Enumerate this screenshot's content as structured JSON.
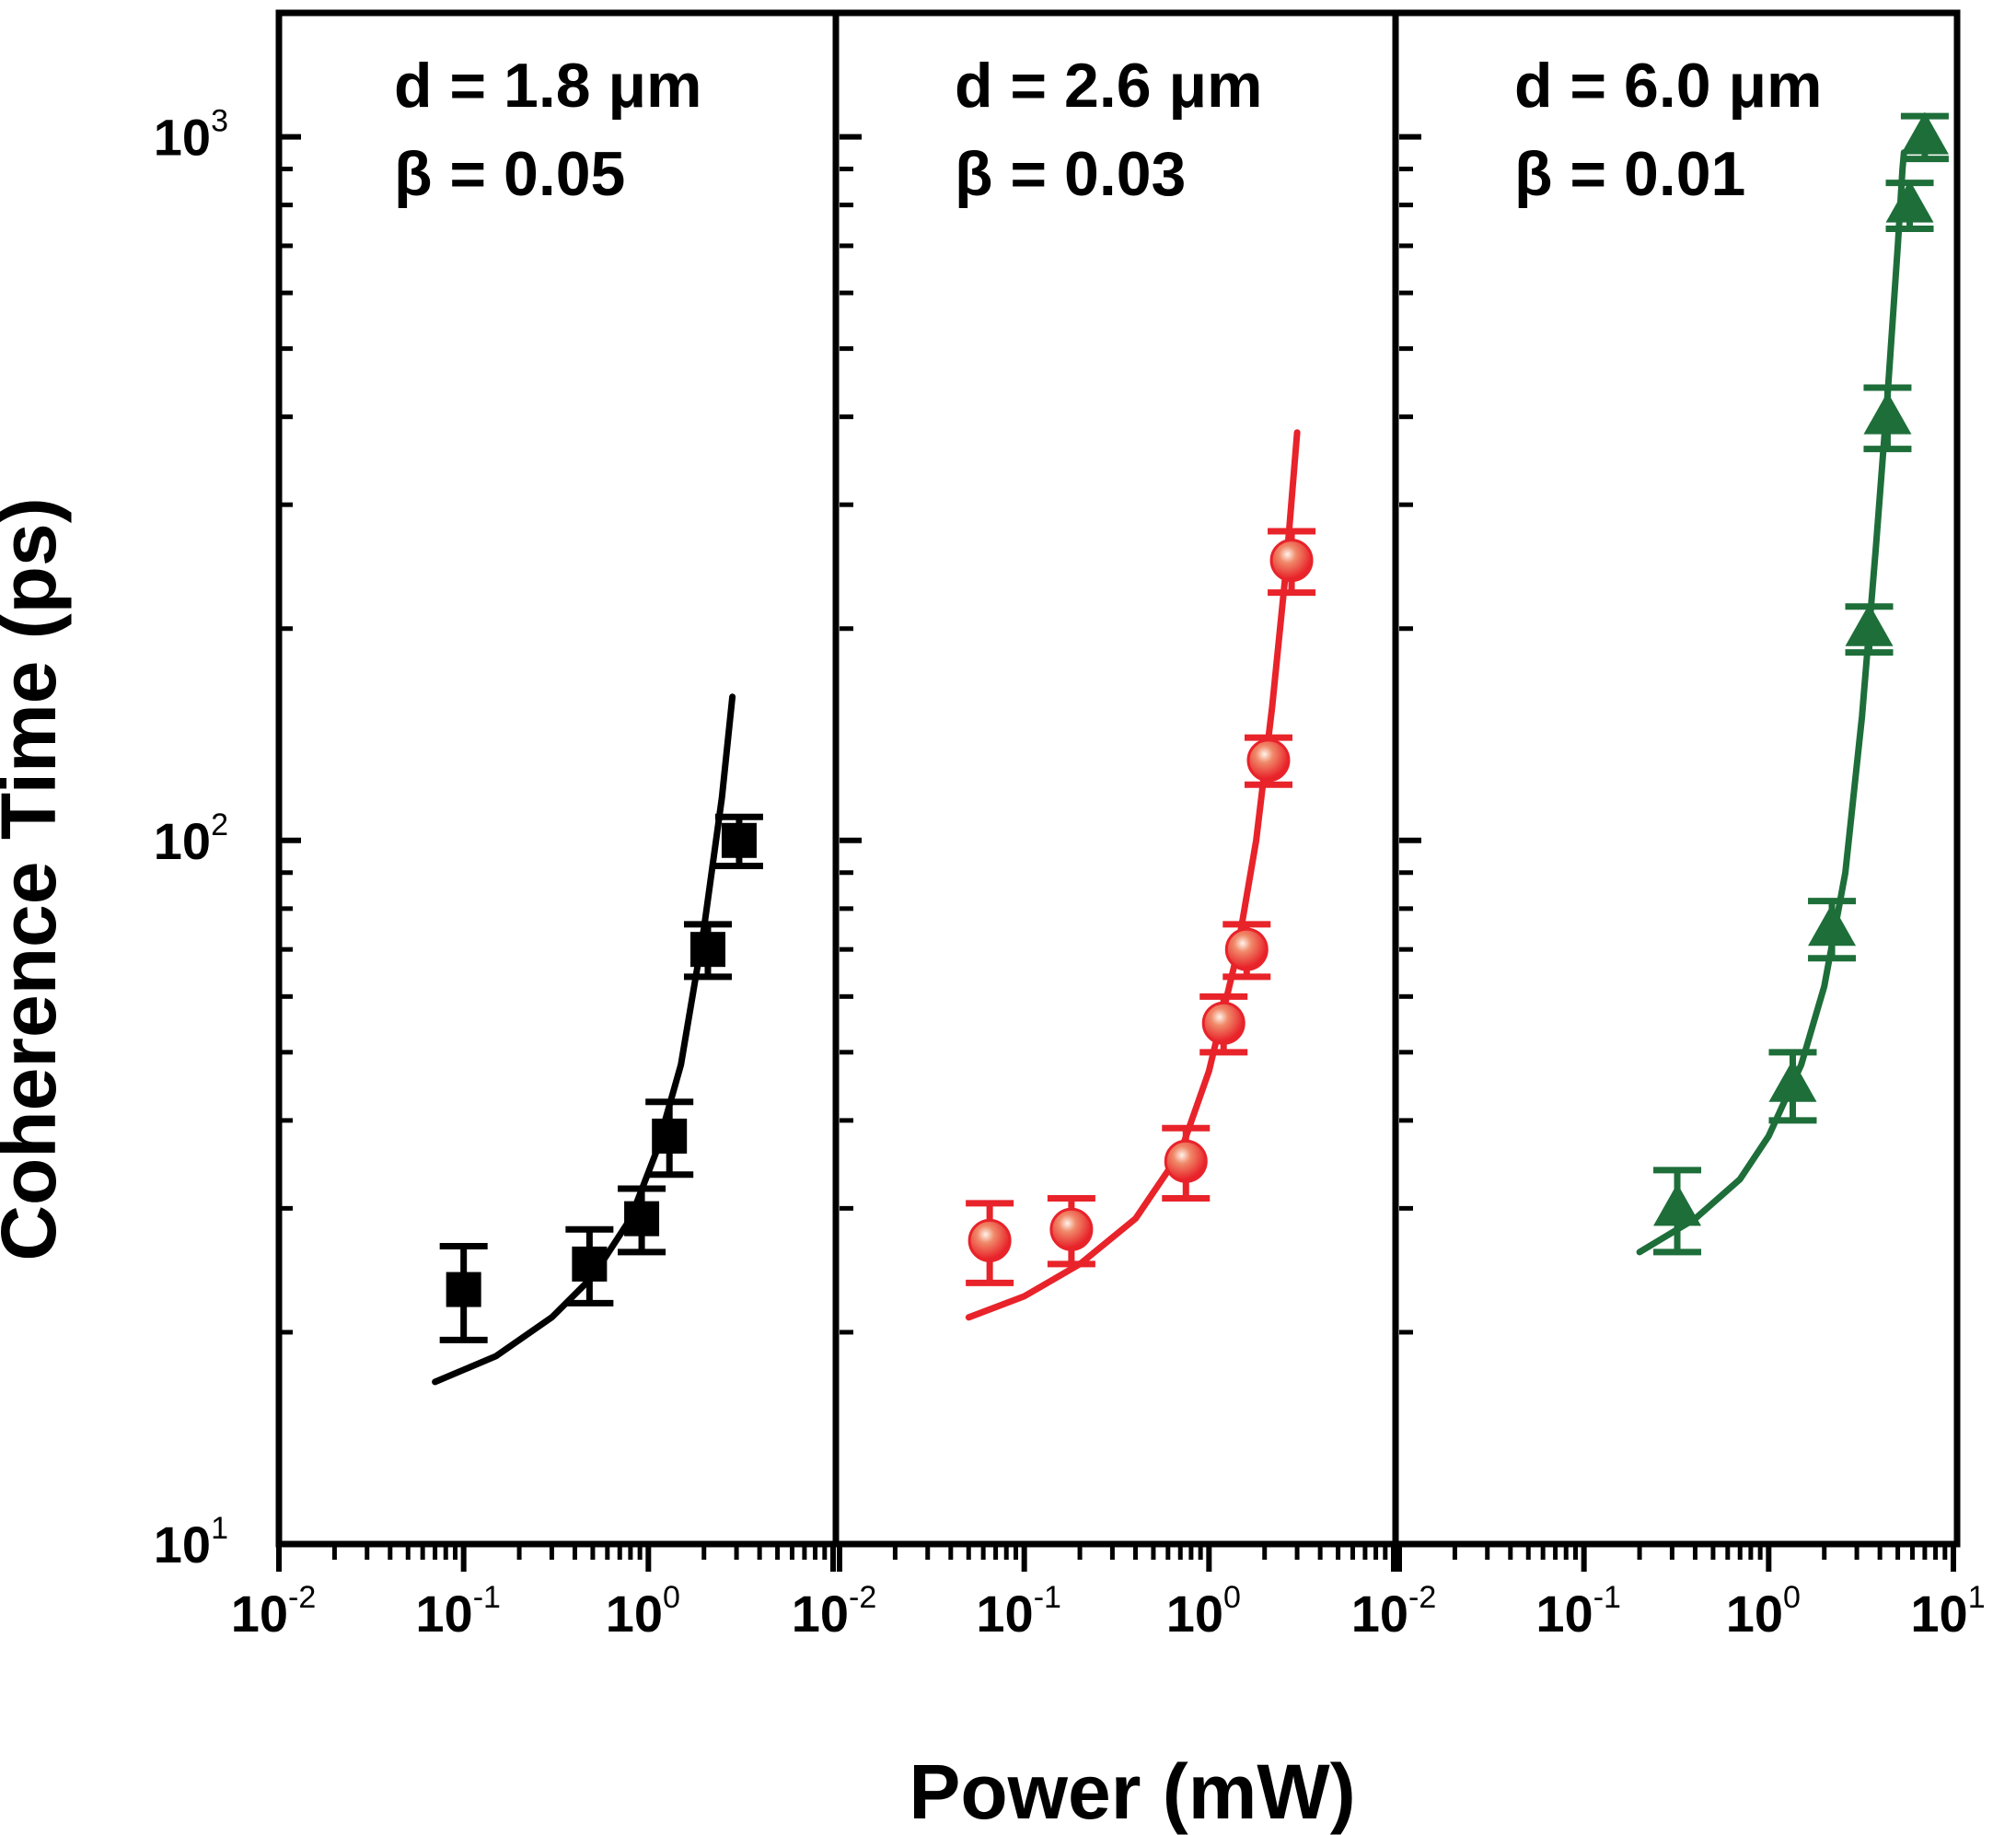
{
  "figure": {
    "ylabel": "Coherence Time (ps)",
    "xlabel": "Power (mW)"
  },
  "chart_data": [
    {
      "type": "scatter",
      "title": "d = 1.8 μm",
      "subtitle": "β = 0.05",
      "xlabel": "Power (mW)",
      "ylabel": "Coherence Time (ps)",
      "xscale": "log",
      "yscale": "log",
      "xlim": [
        0.01,
        10
      ],
      "ylim": [
        10,
        1500
      ],
      "x_tick_labels": [
        {
          "base": "10",
          "exp": "-2"
        },
        {
          "base": "10",
          "exp": "-1"
        },
        {
          "base": "10",
          "exp": "0"
        }
      ],
      "y_tick_labels": [
        {
          "base": "10",
          "exp": "1"
        },
        {
          "base": "10",
          "exp": "2"
        },
        {
          "base": "10",
          "exp": "3"
        }
      ],
      "marker": "square",
      "color": "#000000",
      "grid": false,
      "points": [
        {
          "x": 0.1,
          "y": 23,
          "err": 3.5
        },
        {
          "x": 0.48,
          "y": 25,
          "err": 3
        },
        {
          "x": 0.92,
          "y": 29,
          "err": 3
        },
        {
          "x": 1.3,
          "y": 38,
          "err": 4.5
        },
        {
          "x": 2.1,
          "y": 70,
          "err": 6
        },
        {
          "x": 3.1,
          "y": 100,
          "err": 8
        }
      ],
      "fit": {
        "x": [
          0.07,
          0.15,
          0.3,
          0.5,
          0.8,
          1.1,
          1.5,
          2.0,
          2.5,
          2.85
        ],
        "y": [
          17,
          18.5,
          21,
          24,
          29,
          36,
          48,
          75,
          115,
          160
        ]
      }
    },
    {
      "type": "scatter",
      "title": "d = 2.6 μm",
      "subtitle": "β = 0.03",
      "xlabel": "Power (mW)",
      "ylabel": "Coherence Time (ps)",
      "xscale": "log",
      "yscale": "log",
      "xlim": [
        0.01,
        10
      ],
      "ylim": [
        10,
        1500
      ],
      "x_tick_labels": [
        {
          "base": "10",
          "exp": "-2"
        },
        {
          "base": "10",
          "exp": "-1"
        },
        {
          "base": "10",
          "exp": "0"
        }
      ],
      "marker": "circle",
      "color": "#e8232a",
      "grid": false,
      "points": [
        {
          "x": 0.065,
          "y": 27,
          "err": 3.5
        },
        {
          "x": 0.18,
          "y": 28,
          "err": 3
        },
        {
          "x": 0.75,
          "y": 35,
          "err": 4
        },
        {
          "x": 1.2,
          "y": 55,
          "err": 5
        },
        {
          "x": 1.6,
          "y": 70,
          "err": 6
        },
        {
          "x": 2.1,
          "y": 130,
          "err": 10
        },
        {
          "x": 2.8,
          "y": 250,
          "err": 25
        }
      ],
      "fit": {
        "x": [
          0.05,
          0.1,
          0.2,
          0.4,
          0.7,
          1.0,
          1.4,
          1.8,
          2.2,
          2.6,
          3.0
        ],
        "y": [
          21,
          22.5,
          25,
          29,
          36,
          47,
          68,
          100,
          155,
          240,
          380
        ]
      }
    },
    {
      "type": "scatter",
      "title": "d = 6.0 μm",
      "subtitle": "β = 0.01",
      "xlabel": "Power (mW)",
      "ylabel": "Coherence Time (ps)",
      "xscale": "log",
      "yscale": "log",
      "xlim": [
        0.01,
        10
      ],
      "ylim": [
        10,
        1500
      ],
      "x_tick_labels": [
        {
          "base": "10",
          "exp": "-2"
        },
        {
          "base": "10",
          "exp": "-1"
        },
        {
          "base": "10",
          "exp": "0"
        },
        {
          "base": "10",
          "exp": "1"
        }
      ],
      "marker": "triangle",
      "color": "#1e6e3a",
      "grid": false,
      "points": [
        {
          "x": 0.32,
          "y": 30,
          "err": 4
        },
        {
          "x": 1.35,
          "y": 45,
          "err": 5
        },
        {
          "x": 2.2,
          "y": 75,
          "err": 7
        },
        {
          "x": 3.5,
          "y": 200,
          "err": 15
        },
        {
          "x": 4.4,
          "y": 400,
          "err": 40
        },
        {
          "x": 5.8,
          "y": 800,
          "err": 60
        },
        {
          "x": 7.0,
          "y": 1000,
          "err": 70
        }
      ],
      "fit": {
        "x": [
          0.2,
          0.4,
          0.7,
          1.0,
          1.5,
          2.0,
          2.6,
          3.2,
          3.8,
          4.4,
          5.0,
          5.3,
          5.4
        ],
        "y": [
          26,
          29,
          33,
          38,
          48,
          62,
          90,
          150,
          260,
          430,
          700,
          900,
          950
        ]
      }
    }
  ]
}
